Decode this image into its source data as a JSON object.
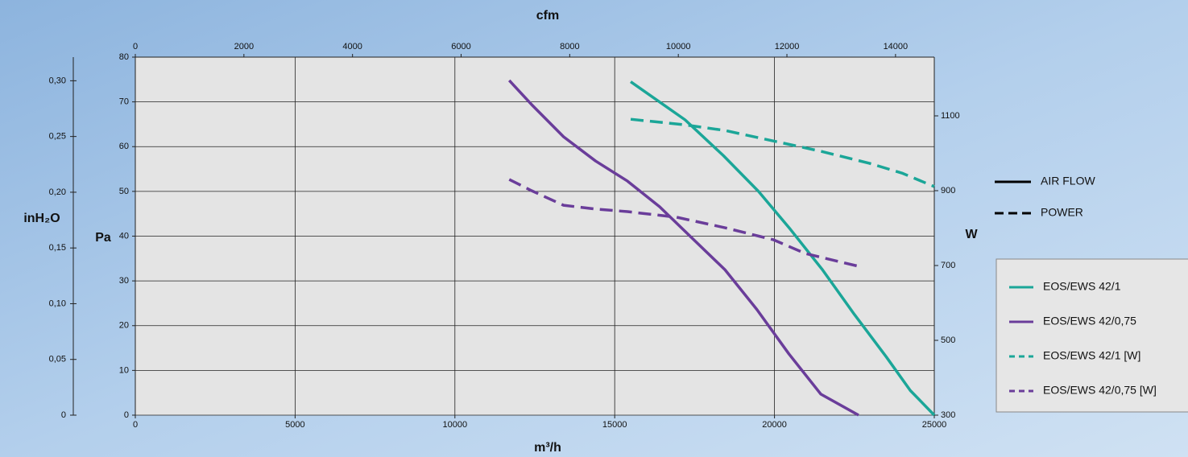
{
  "chart_data": {
    "type": "line",
    "x_label": "m³/h",
    "x2_label": "cfm",
    "y_label": "Pa",
    "y2_label": "W",
    "y3_label": "inH₂O",
    "xlim": [
      0,
      25000
    ],
    "xticks": [
      0,
      5000,
      10000,
      15000,
      20000,
      25000
    ],
    "x2lim": [
      0,
      14714
    ],
    "x2ticks": [
      0,
      2000,
      4000,
      6000,
      8000,
      10000,
      12000,
      14000
    ],
    "ylim": [
      0,
      80
    ],
    "yticks": [
      0,
      10,
      20,
      30,
      40,
      50,
      60,
      70,
      80
    ],
    "y2lim": [
      300,
      1257
    ],
    "y2ticks": [
      300,
      500,
      700,
      900,
      1100
    ],
    "y3lim": [
      0,
      0.3212
    ],
    "y3ticks": [
      0,
      {
        "value": 0.05,
        "label": "0,05"
      },
      {
        "value": 0.1,
        "label": "0,10"
      },
      {
        "value": 0.15,
        "label": "0,15"
      },
      {
        "value": 0.2,
        "label": "0,20"
      },
      {
        "value": 0.25,
        "label": "0,25"
      },
      {
        "value": 0.3,
        "label": "0,30"
      }
    ],
    "grid": true,
    "style_legend": [
      {
        "label": "AIR FLOW",
        "dash": false
      },
      {
        "label": "POWER",
        "dash": true
      }
    ],
    "series": [
      {
        "name": "EOS/EWS 42/1",
        "color": "#1ba698",
        "dash": false,
        "x": [
          15500,
          17200,
          18400,
          19500,
          20500,
          21500,
          22500,
          23500,
          24250,
          25000
        ],
        "values": [
          74.5,
          66,
          58,
          50,
          41.5,
          32.5,
          22.5,
          13,
          5.5,
          0
        ]
      },
      {
        "name": "EOS/EWS 42/0,75",
        "color": "#6a3d9a",
        "dash": false,
        "x": [
          11700,
          12400,
          13400,
          14400,
          15400,
          16400,
          17400,
          18450,
          19450,
          20450,
          21450,
          22630
        ],
        "values": [
          74.8,
          69.4,
          62.2,
          56.8,
          52.3,
          46.6,
          39.7,
          32.5,
          23.6,
          13.7,
          4.7,
          0
        ]
      },
      {
        "name": "EOS/EWS 42/1 [W]",
        "color": "#1ba698",
        "dash": true,
        "axis": "y2",
        "x": [
          15500,
          17200,
          18450,
          19960,
          21470,
          22980,
          23990,
          25000
        ],
        "values": [
          1091,
          1076,
          1061,
          1033,
          1005,
          973,
          947,
          911
        ]
      },
      {
        "name": "EOS/EWS 42/0,75 [W]",
        "color": "#6a3d9a",
        "dash": true,
        "axis": "y2",
        "x": [
          11700,
          12400,
          13400,
          14400,
          15400,
          16940,
          18450,
          19960,
          20970,
          22630
        ],
        "values": [
          930,
          900,
          861,
          851,
          844,
          829,
          801,
          769,
          732,
          698
        ]
      }
    ]
  }
}
